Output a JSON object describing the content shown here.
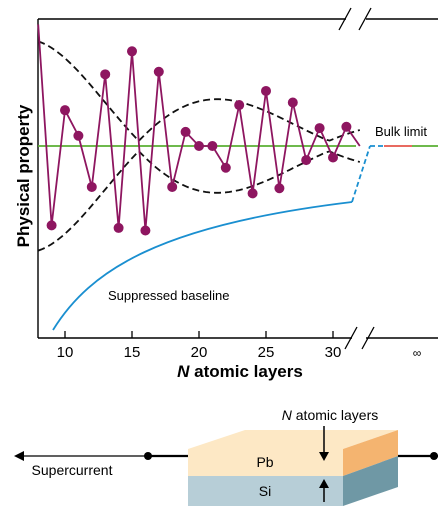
{
  "chart": {
    "ylabel": "Physical property",
    "xlabel_var": "N",
    "xlabel_rest": " atomic layers",
    "ticks": [
      10,
      15,
      20,
      25,
      30
    ],
    "infinity_label": "∞",
    "bulk_limit_label": "Bulk limit",
    "baseline_label": "Suppressed baseline"
  },
  "chart_data": {
    "type": "line",
    "xlabel": "N atomic layers",
    "ylabel": "Physical property",
    "x_ticks": [
      10,
      15,
      20,
      25,
      30
    ],
    "x_extra_tick": "∞",
    "series": [
      {
        "x": [
          8,
          9,
          10,
          11,
          12,
          13,
          14,
          15,
          16,
          17,
          18,
          19,
          20,
          21,
          22,
          23,
          24,
          25,
          26,
          27,
          28,
          29,
          30,
          31,
          32
        ],
        "y": [
          0.95,
          -0.62,
          0.28,
          0.08,
          -0.32,
          0.56,
          -0.64,
          0.74,
          -0.66,
          0.58,
          -0.32,
          0.11,
          0.0,
          0.0,
          -0.17,
          0.32,
          -0.37,
          0.43,
          -0.33,
          0.34,
          -0.11,
          0.14,
          -0.09,
          0.15,
          0.0
        ]
      }
    ],
    "bulk_limit": 0.0,
    "suppressed_baseline": {
      "x": [
        9,
        32
      ],
      "y": [
        -1.5,
        -0.47
      ]
    },
    "envelope_upper": "dashed",
    "envelope_lower": "dashed"
  },
  "schematic": {
    "n_layers_var": "N",
    "n_layers_rest": " atomic layers",
    "top_layer": "Pb",
    "bottom_layer": "Si",
    "supercurrent_label": "Supercurrent"
  },
  "colors": {
    "data": "#8e1660",
    "bulk_green": "#5aaf32",
    "bulk_red": "#e5554a",
    "baseline_blue": "#1a8fd0",
    "pb_top": "#fde8c5",
    "pb_side": "#f4b470",
    "si_front": "#b7ced7",
    "si_side": "#6f98a5"
  }
}
